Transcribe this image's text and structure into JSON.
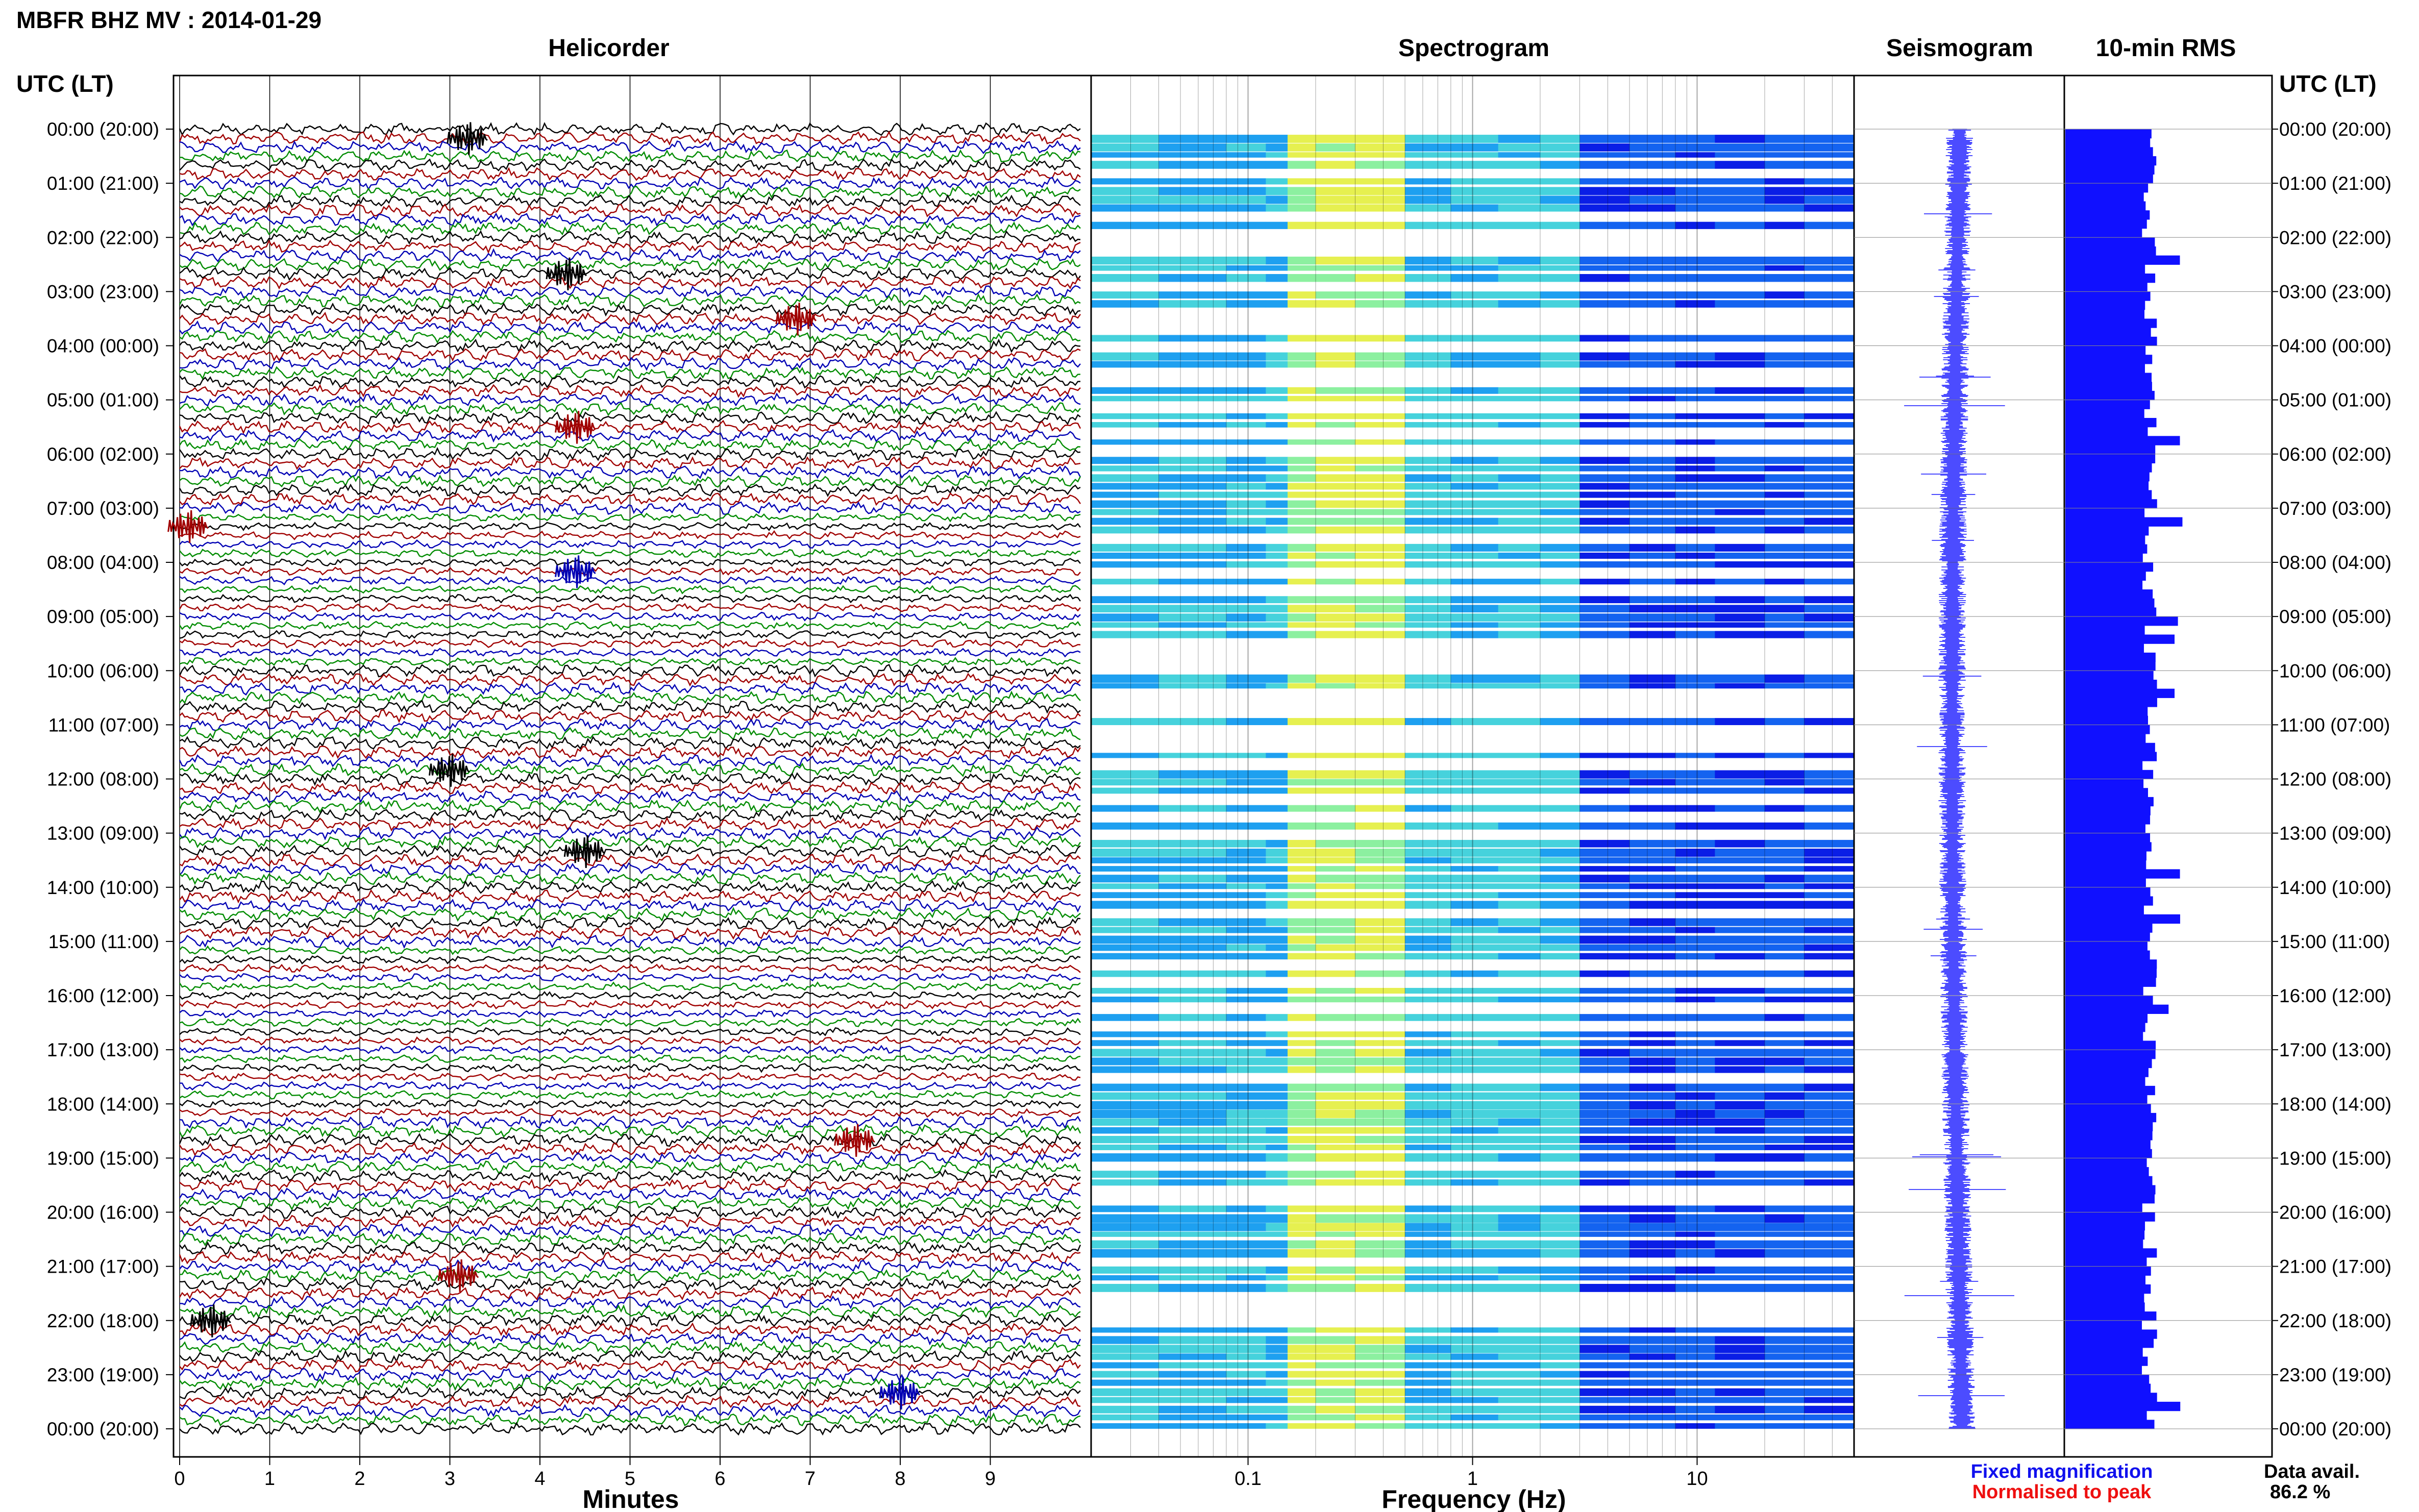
{
  "title": "MBFR BHZ MV : 2014-01-29",
  "panels": {
    "helicorder": "Helicorder",
    "spectrogram": "Spectrogram",
    "seismogram": "Seismogram",
    "rms": "10-min RMS"
  },
  "time_axis_label": "UTC (LT)",
  "legend": {
    "fixed": "Fixed magnification",
    "normalised": "Normalised to peak",
    "fixed_color": "#1010ee",
    "normalised_color": "#ee1010"
  },
  "availability": {
    "label": "Data avail.",
    "value": "86.2 %"
  },
  "chart_data": [
    {
      "type": "line",
      "name": "helicorder",
      "xlabel": "Minutes",
      "xlim": [
        0,
        10
      ],
      "x_ticks": [
        "0",
        "1",
        "2",
        "3",
        "4",
        "5",
        "6",
        "7",
        "8",
        "9"
      ],
      "y_ticks": [
        "00:00 (20:00)",
        "01:00 (21:00)",
        "02:00 (22:00)",
        "03:00 (23:00)",
        "04:00 (00:00)",
        "05:00 (01:00)",
        "06:00 (02:00)",
        "07:00 (03:00)",
        "08:00 (04:00)",
        "09:00 (05:00)",
        "10:00 (06:00)",
        "11:00 (07:00)",
        "12:00 (08:00)",
        "13:00 (09:00)",
        "14:00 (10:00)",
        "15:00 (11:00)",
        "16:00 (12:00)",
        "17:00 (13:00)",
        "18:00 (14:00)",
        "19:00 (15:00)",
        "20:00 (16:00)",
        "21:00 (17:00)",
        "22:00 (18:00)",
        "23:00 (19:00)",
        "00:00 (20:00)"
      ],
      "trace_colors": [
        "#000000",
        "#a00000",
        "#0000b4",
        "#008c00"
      ],
      "grid": true
    },
    {
      "type": "heatmap",
      "name": "spectrogram",
      "xlabel": "Frequency (Hz)",
      "x_scale": "log",
      "xlim": [
        0.02,
        50
      ],
      "x_ticks": [
        "0.1",
        "1",
        "10"
      ],
      "grid": true
    },
    {
      "type": "line",
      "name": "seismogram",
      "grid": true
    },
    {
      "type": "bar",
      "name": "10-min RMS",
      "orientation": "horizontal",
      "color": "#1010ff",
      "grid": true
    }
  ]
}
